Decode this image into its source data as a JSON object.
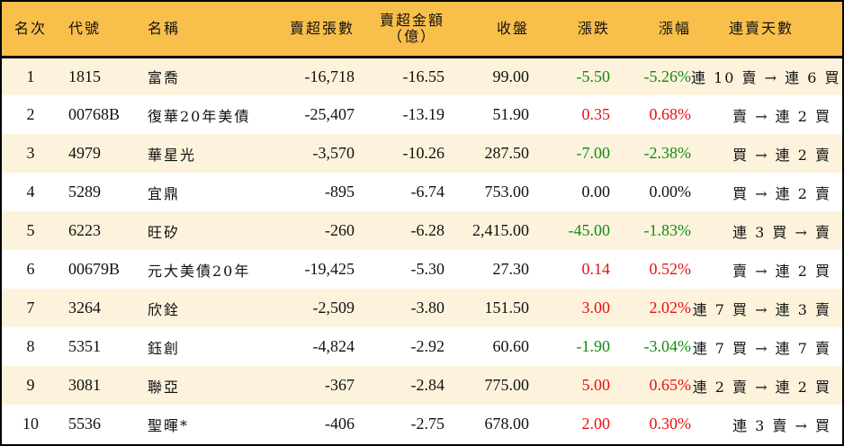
{
  "colors": {
    "header_bg": "#F9BF4B",
    "row_odd_bg": "#FDF3DD",
    "row_even_bg": "#FFFFFF",
    "up": "#E8100F",
    "down": "#138A13",
    "border": "#000000"
  },
  "header": {
    "rank": "名次",
    "code": "代號",
    "name": "名稱",
    "net_sell_lots": "賣超張數",
    "net_sell_amount_line1": "賣超金額",
    "net_sell_amount_line2": "（億）",
    "close": "收盤",
    "change": "漲跌",
    "change_pct": "漲幅",
    "streak": "連賣天數"
  },
  "rows": [
    {
      "rank": "1",
      "code": "1815",
      "name": "富喬",
      "lots": "-16,718",
      "amount": "-16.55",
      "close": "99.00",
      "change": "-5.50",
      "pct": "-5.26%",
      "dir": "down",
      "streak": "連 10 賣 → 連 6 買"
    },
    {
      "rank": "2",
      "code": "00768B",
      "name": "復華20年美債",
      "lots": "-25,407",
      "amount": "-13.19",
      "close": "51.90",
      "change": "0.35",
      "pct": "0.68%",
      "dir": "up",
      "streak": "賣 → 連 2 買"
    },
    {
      "rank": "3",
      "code": "4979",
      "name": "華星光",
      "lots": "-3,570",
      "amount": "-10.26",
      "close": "287.50",
      "change": "-7.00",
      "pct": "-2.38%",
      "dir": "down",
      "streak": "買 → 連 2 賣"
    },
    {
      "rank": "4",
      "code": "5289",
      "name": "宜鼎",
      "lots": "-895",
      "amount": "-6.74",
      "close": "753.00",
      "change": "0.00",
      "pct": "0.00%",
      "dir": "flat",
      "streak": "買 → 連 2 賣"
    },
    {
      "rank": "5",
      "code": "6223",
      "name": "旺矽",
      "lots": "-260",
      "amount": "-6.28",
      "close": "2,415.00",
      "change": "-45.00",
      "pct": "-1.83%",
      "dir": "down",
      "streak": "連 3 買 → 賣"
    },
    {
      "rank": "6",
      "code": "00679B",
      "name": "元大美債20年",
      "lots": "-19,425",
      "amount": "-5.30",
      "close": "27.30",
      "change": "0.14",
      "pct": "0.52%",
      "dir": "up",
      "streak": "賣 → 連 2 買"
    },
    {
      "rank": "7",
      "code": "3264",
      "name": "欣銓",
      "lots": "-2,509",
      "amount": "-3.80",
      "close": "151.50",
      "change": "3.00",
      "pct": "2.02%",
      "dir": "up",
      "streak": "連 7 買 → 連 3 賣"
    },
    {
      "rank": "8",
      "code": "5351",
      "name": "鈺創",
      "lots": "-4,824",
      "amount": "-2.92",
      "close": "60.60",
      "change": "-1.90",
      "pct": "-3.04%",
      "dir": "down",
      "streak": "連 7 買 → 連 7 賣"
    },
    {
      "rank": "9",
      "code": "3081",
      "name": "聯亞",
      "lots": "-367",
      "amount": "-2.84",
      "close": "775.00",
      "change": "5.00",
      "pct": "0.65%",
      "dir": "up",
      "streak": "連 2 賣 → 連 2 買"
    },
    {
      "rank": "10",
      "code": "5536",
      "name": "聖暉*",
      "lots": "-406",
      "amount": "-2.75",
      "close": "678.00",
      "change": "2.00",
      "pct": "0.30%",
      "dir": "up",
      "streak": "連 3 賣 → 買"
    }
  ]
}
